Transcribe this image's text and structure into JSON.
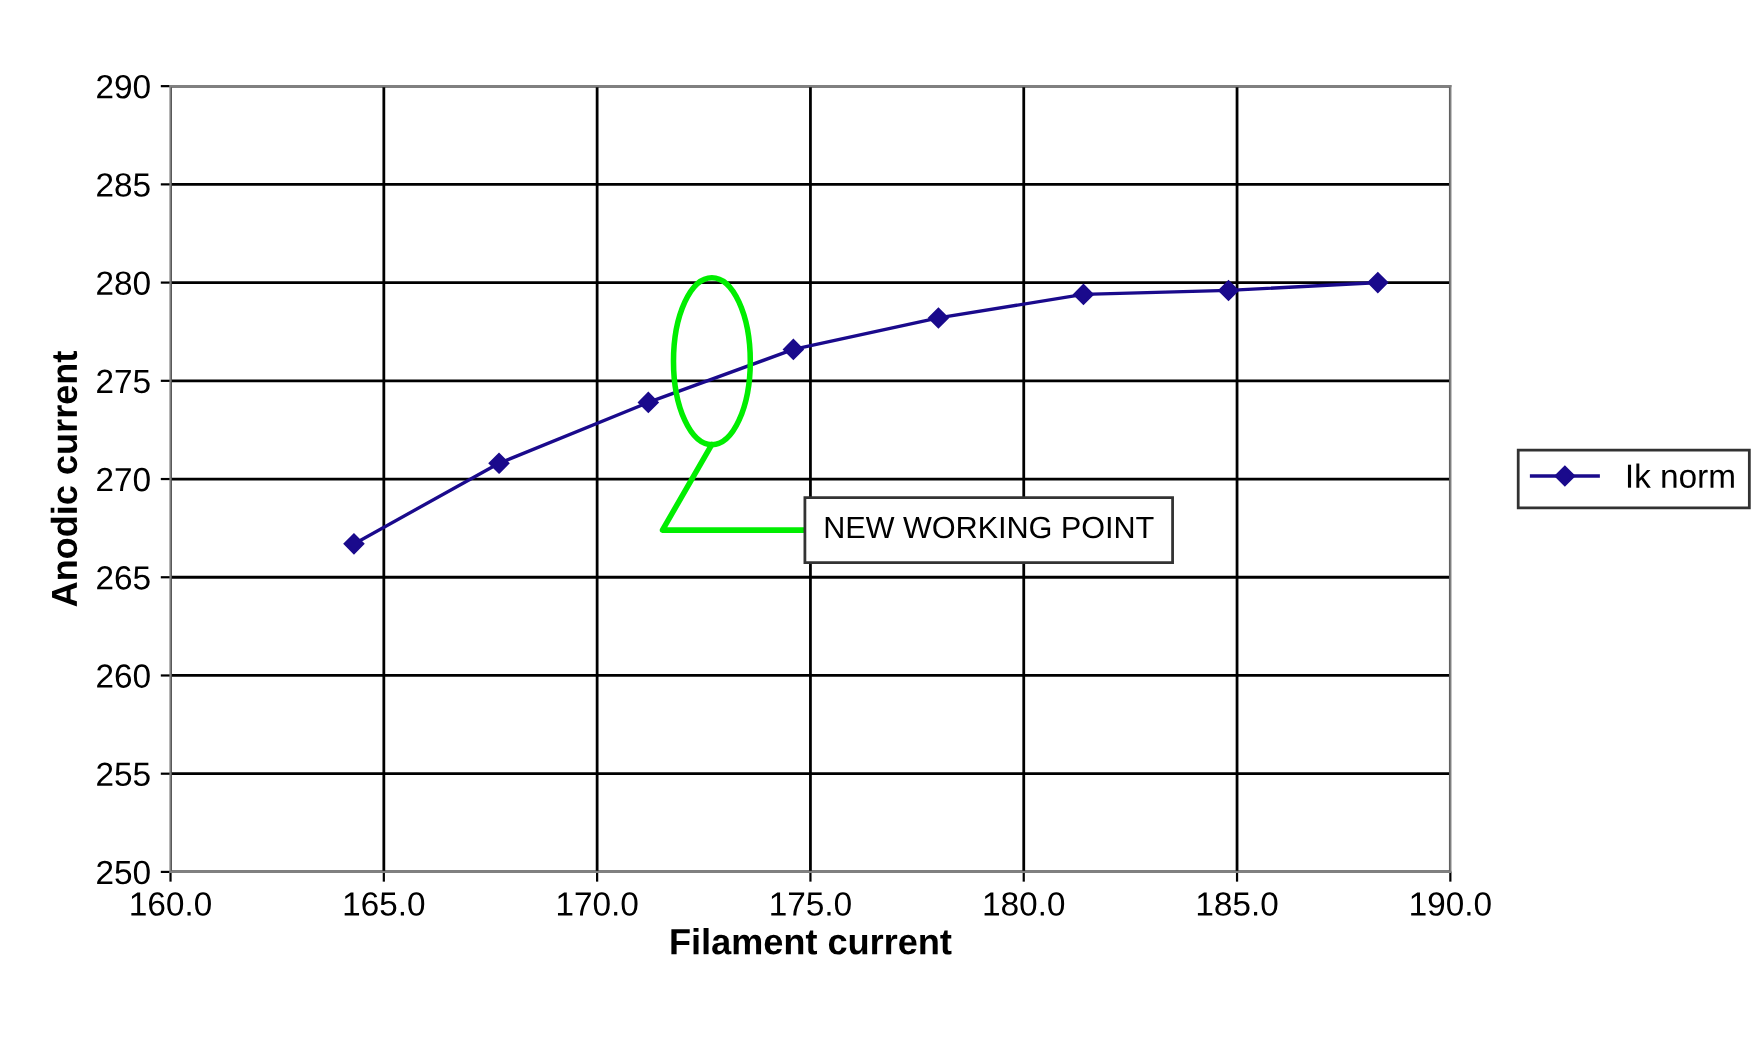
{
  "chart_data": {
    "type": "line",
    "xlabel": "Filament current",
    "ylabel": "Anodic current",
    "x": [
      164.3,
      167.7,
      171.2,
      174.6,
      178.0,
      181.4,
      184.8,
      188.3
    ],
    "series": [
      {
        "name": "Ik norm",
        "color": "#1a0a8c",
        "values": [
          266.7,
          270.8,
          273.9,
          276.6,
          278.2,
          279.4,
          279.6,
          280.0
        ]
      }
    ],
    "xlim": [
      160,
      190
    ],
    "xticks": [
      {
        "value": 160,
        "label": "160.0"
      },
      {
        "value": 165,
        "label": "165.0"
      },
      {
        "value": 170,
        "label": "170.0"
      },
      {
        "value": 175,
        "label": "175.0"
      },
      {
        "value": 180,
        "label": "180.0"
      },
      {
        "value": 185,
        "label": "185.0"
      },
      {
        "value": 190,
        "label": "190.0"
      }
    ],
    "ylim": [
      250,
      290
    ],
    "yticks": [
      250,
      255,
      260,
      265,
      270,
      275,
      280,
      285,
      290
    ],
    "annotations": [
      "NEW WORKING POINT"
    ],
    "grid": true,
    "legend": "right",
    "marker": "diamond",
    "line_style": "solid"
  }
}
